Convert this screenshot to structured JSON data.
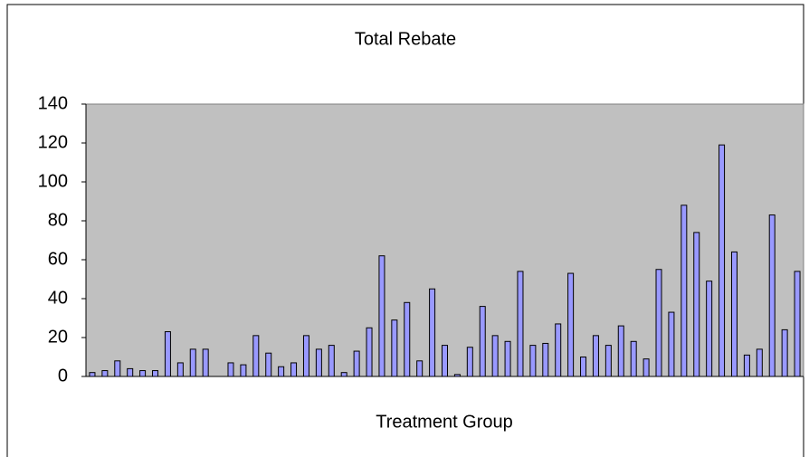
{
  "chart_data": {
    "type": "bar",
    "title": "Total Rebate",
    "x_label": "Treatment Group",
    "categories": [
      null,
      null,
      null,
      null,
      null,
      null,
      null,
      null,
      null,
      null,
      null,
      null,
      null,
      null,
      null,
      null,
      null,
      null,
      null,
      null,
      null,
      null,
      null,
      null,
      null,
      null,
      null,
      null,
      null,
      null,
      null,
      null,
      null,
      null,
      null,
      null,
      null,
      null,
      null,
      null,
      null,
      null,
      null,
      null,
      null,
      null,
      null,
      null,
      null,
      null,
      null,
      null,
      null,
      null,
      null,
      null,
      null
    ],
    "values": [
      2,
      3,
      8,
      4,
      3,
      3,
      23,
      7,
      14,
      14,
      0,
      7,
      6,
      21,
      12,
      5,
      7,
      21,
      14,
      16,
      2,
      13,
      25,
      62,
      29,
      38,
      8,
      45,
      16,
      1,
      15,
      36,
      21,
      18,
      54,
      16,
      17,
      27,
      53,
      10,
      21,
      16,
      26,
      18,
      9,
      55,
      33,
      88,
      74,
      49,
      119,
      64,
      11,
      14,
      83,
      24,
      54
    ],
    "color": "#9999ff",
    "plot_background": "#c0c0c0",
    "ylim": [
      0,
      140
    ],
    "yticks": [
      0,
      20,
      40,
      60,
      80,
      100,
      120,
      140
    ]
  }
}
